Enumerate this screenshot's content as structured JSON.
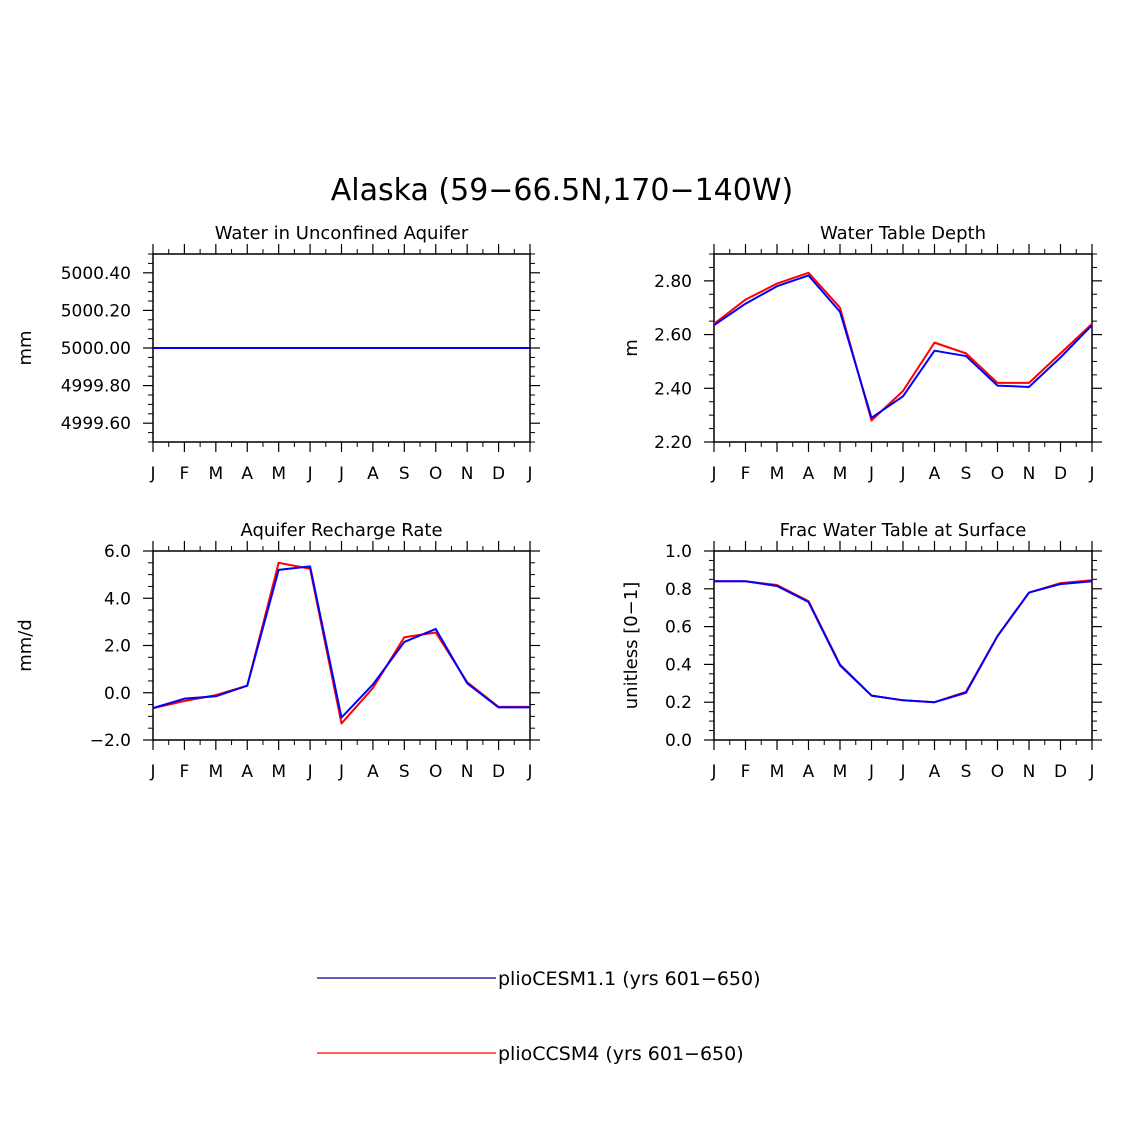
{
  "title": "Alaska (59−66.5N,170−140W)",
  "months": [
    "J",
    "F",
    "M",
    "A",
    "M",
    "J",
    "J",
    "A",
    "S",
    "O",
    "N",
    "D",
    "J"
  ],
  "colors": {
    "plioCESM": "#0000ff",
    "plioCCSM": "#ff0000"
  },
  "legend": [
    {
      "label": "plioCESM1.1 (yrs 601−650)",
      "color": "#00008b"
    },
    {
      "label": "plioCCSM4 (yrs 601−650)",
      "color": "#ff0000"
    }
  ],
  "chart_data": [
    {
      "type": "line",
      "title": "Water in Unconfined Aquifer",
      "ylabel": "mm",
      "ylim": [
        4999.5,
        5000.5
      ],
      "yticks": [
        4999.6,
        4999.8,
        5000.0,
        5000.2,
        5000.4
      ],
      "ytick_labels": [
        "4999.60",
        "4999.80",
        "5000.00",
        "5000.20",
        "5000.40"
      ],
      "series": [
        {
          "values": [
            5000.0,
            5000.0,
            5000.0,
            5000.0,
            5000.0,
            5000.0,
            5000.0,
            5000.0,
            5000.0,
            5000.0,
            5000.0,
            5000.0,
            5000.0
          ]
        },
        {
          "values": [
            5000.0,
            5000.0,
            5000.0,
            5000.0,
            5000.0,
            5000.0,
            5000.0,
            5000.0,
            5000.0,
            5000.0,
            5000.0,
            5000.0,
            5000.0
          ]
        }
      ]
    },
    {
      "type": "line",
      "title": "Water Table Depth",
      "ylabel": "m",
      "ylim": [
        2.2,
        2.9
      ],
      "yticks": [
        2.2,
        2.4,
        2.6,
        2.8
      ],
      "ytick_labels": [
        "2.20",
        "2.40",
        "2.60",
        "2.80"
      ],
      "series": [
        {
          "values": [
            2.64,
            2.73,
            2.79,
            2.83,
            2.7,
            2.28,
            2.39,
            2.57,
            2.53,
            2.42,
            2.42,
            2.53,
            2.64
          ]
        },
        {
          "values": [
            2.635,
            2.715,
            2.78,
            2.82,
            2.685,
            2.29,
            2.37,
            2.54,
            2.52,
            2.41,
            2.405,
            2.515,
            2.635
          ]
        }
      ]
    },
    {
      "type": "line",
      "title": "Aquifer Recharge Rate",
      "ylabel": "mm/d",
      "ylim": [
        -2.0,
        6.0
      ],
      "yticks": [
        -2.0,
        0.0,
        2.0,
        4.0,
        6.0
      ],
      "ytick_labels": [
        "−2.0",
        "0.0",
        "2.0",
        "4.0",
        "6.0"
      ],
      "series": [
        {
          "values": [
            -0.65,
            -0.35,
            -0.1,
            0.3,
            5.5,
            5.25,
            -1.3,
            0.2,
            2.35,
            2.55,
            0.45,
            -0.6,
            -0.6
          ]
        },
        {
          "values": [
            -0.65,
            -0.25,
            -0.15,
            0.3,
            5.2,
            5.35,
            -1.05,
            0.35,
            2.15,
            2.7,
            0.4,
            -0.62,
            -0.62
          ]
        }
      ]
    },
    {
      "type": "line",
      "title": "Frac Water Table at Surface",
      "ylabel": "unitless [0−1]",
      "ylim": [
        0.0,
        1.0
      ],
      "yticks": [
        0.0,
        0.2,
        0.4,
        0.6,
        0.8,
        1.0
      ],
      "ytick_labels": [
        "0.0",
        "0.2",
        "0.4",
        "0.6",
        "0.8",
        "1.0"
      ],
      "series": [
        {
          "values": [
            0.84,
            0.84,
            0.82,
            0.735,
            0.4,
            0.235,
            0.21,
            0.2,
            0.255,
            0.55,
            0.78,
            0.83,
            0.845
          ]
        },
        {
          "values": [
            0.84,
            0.84,
            0.815,
            0.73,
            0.395,
            0.235,
            0.21,
            0.2,
            0.25,
            0.55,
            0.78,
            0.825,
            0.84
          ]
        }
      ]
    }
  ]
}
